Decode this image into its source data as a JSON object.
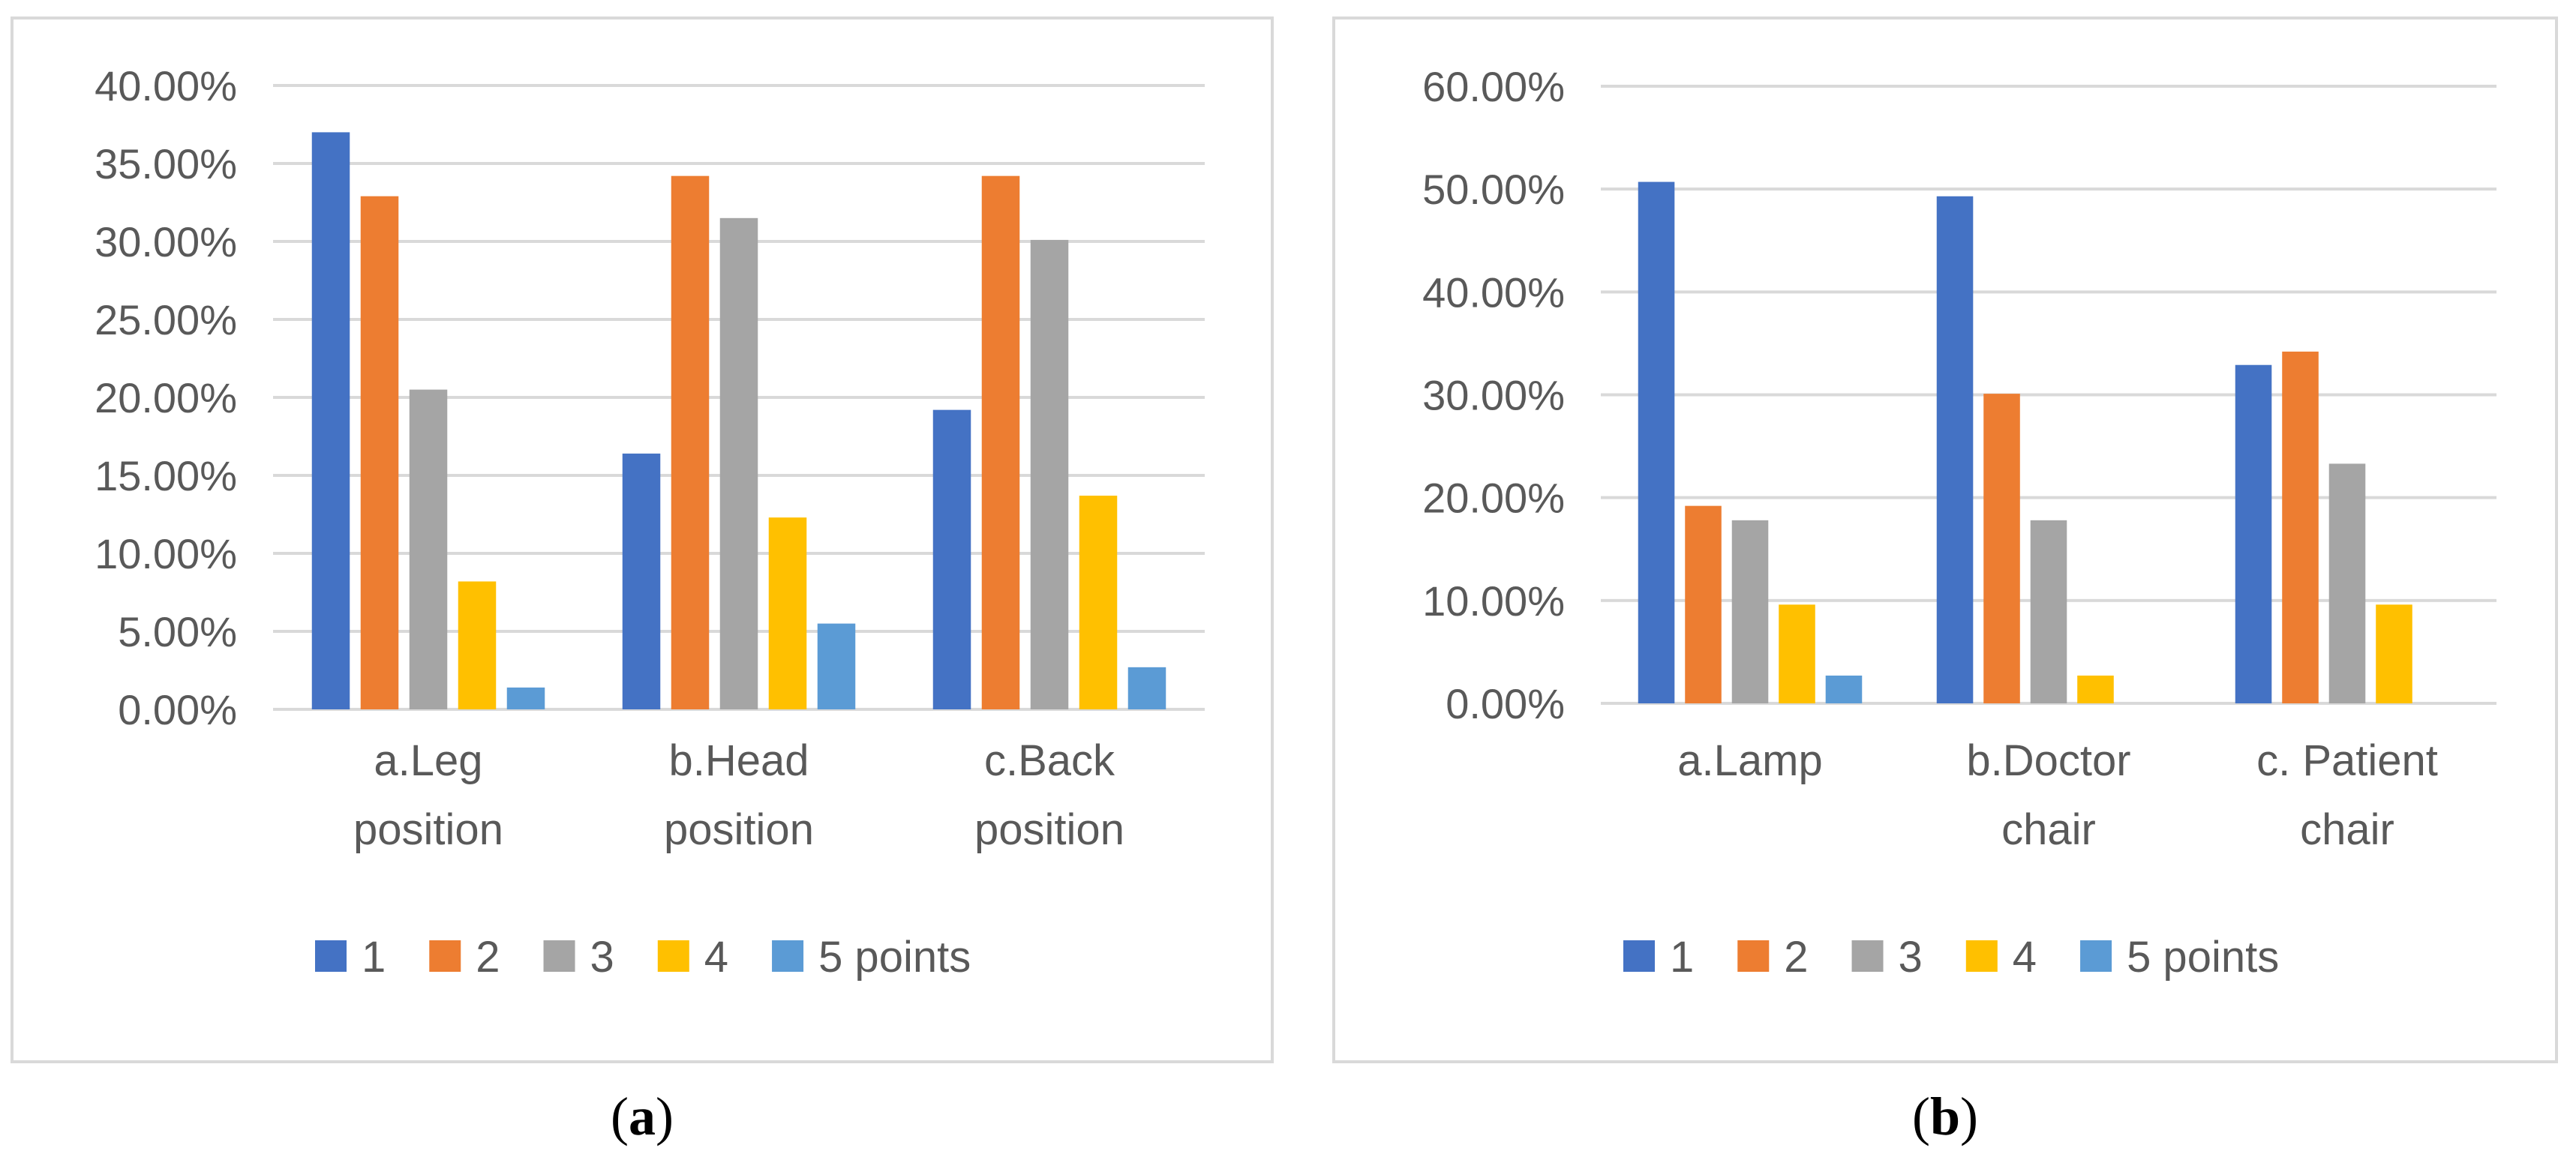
{
  "chart_data": [
    {
      "type": "bar",
      "panel": "a",
      "categories": [
        [
          "a.Leg",
          "position"
        ],
        [
          "b.Head",
          "position"
        ],
        [
          "c.Back",
          "position"
        ]
      ],
      "series": [
        {
          "name": "1",
          "color": "#4472C4",
          "values": [
            37.0,
            16.4,
            19.2
          ]
        },
        {
          "name": "2",
          "color": "#ED7D31",
          "values": [
            32.9,
            34.2,
            34.2
          ]
        },
        {
          "name": "3",
          "color": "#A5A5A5",
          "values": [
            20.5,
            31.5,
            30.1
          ]
        },
        {
          "name": "4",
          "color": "#FFC000",
          "values": [
            8.2,
            12.3,
            13.7
          ]
        },
        {
          "name": "5 points",
          "color": "#5B9BD5",
          "values": [
            1.4,
            5.5,
            2.7
          ]
        }
      ],
      "ylim": [
        0,
        40
      ],
      "yticks": [
        "0.00%",
        "5.00%",
        "10.00%",
        "15.00%",
        "20.00%",
        "25.00%",
        "30.00%",
        "35.00%",
        "40.00%"
      ],
      "grid": true,
      "legend": "bottom"
    },
    {
      "type": "bar",
      "panel": "b",
      "categories": [
        [
          "a.Lamp"
        ],
        [
          "b.Doctor",
          "chair"
        ],
        [
          "c. Patient",
          "chair"
        ]
      ],
      "series": [
        {
          "name": "1",
          "color": "#4472C4",
          "values": [
            50.7,
            49.3,
            32.9
          ]
        },
        {
          "name": "2",
          "color": "#ED7D31",
          "values": [
            19.2,
            30.1,
            34.2
          ]
        },
        {
          "name": "3",
          "color": "#A5A5A5",
          "values": [
            17.8,
            17.8,
            23.3
          ]
        },
        {
          "name": "4",
          "color": "#FFC000",
          "values": [
            9.6,
            2.7,
            9.6
          ]
        },
        {
          "name": "5 points",
          "color": "#5B9BD5",
          "values": [
            2.7,
            0,
            0
          ]
        }
      ],
      "ylim": [
        0,
        60
      ],
      "yticks": [
        "0.00%",
        "10.00%",
        "20.00%",
        "30.00%",
        "40.00%",
        "50.00%",
        "60.00%"
      ],
      "grid": true,
      "legend": "bottom"
    }
  ],
  "captions": {
    "a": {
      "open": "(",
      "letter": "a",
      "close": ")"
    },
    "b": {
      "open": "(",
      "letter": "b",
      "close": ")"
    }
  },
  "colors": {
    "grid": "#d9d9d9",
    "axis_text": "#595959",
    "border": "#d9d9d9"
  }
}
